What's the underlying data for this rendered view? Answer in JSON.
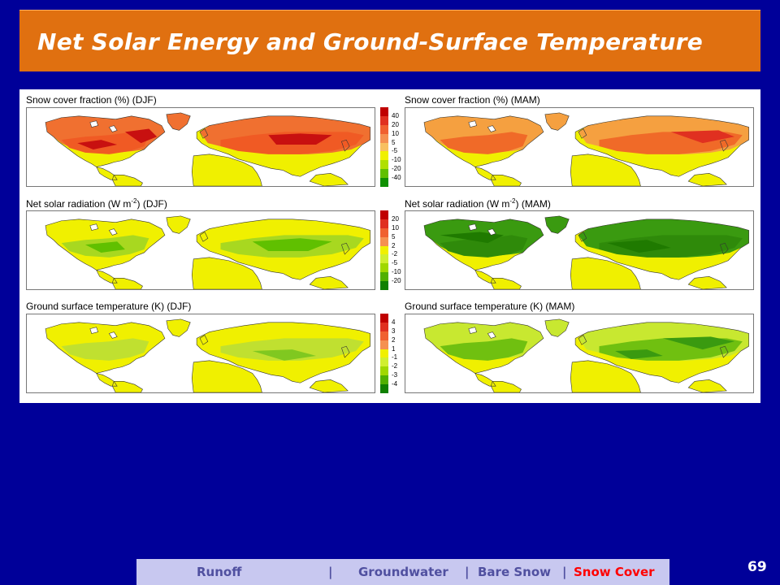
{
  "slide": {
    "title": "Net Solar Energy and Ground-Surface Temperature",
    "page_number": "69"
  },
  "colors": {
    "background": "#000099",
    "title_bar": "#e07010",
    "nav_bar": "#c8c8f0",
    "nav_text": "#5050a0",
    "nav_active": "#ff0000"
  },
  "figure": {
    "rows": [
      {
        "left_label": "Snow cover fraction (%) (DJF)",
        "right_label": "Snow cover fraction (%) (MAM)",
        "colorbar_ticks": [
          "40",
          "20",
          "10",
          "5",
          "-5",
          "-10",
          "-20",
          "-40"
        ],
        "colorbar_colors": [
          "#c00000",
          "#e03020",
          "#f06030",
          "#f59050",
          "#f8c060",
          "#f0f000",
          "#b0e000",
          "#60c000",
          "#109000"
        ]
      },
      {
        "left_label_main": "Net solar radiation (W m",
        "left_label_sup": "-2",
        "left_label_tail": ") (DJF)",
        "right_label_main": "Net solar radiation (W m",
        "right_label_sup": "-2",
        "right_label_tail": ") (MAM)",
        "colorbar_ticks": [
          "20",
          "10",
          "5",
          "2",
          "-2",
          "-5",
          "-10",
          "-20"
        ],
        "colorbar_colors": [
          "#c00000",
          "#e03020",
          "#f06030",
          "#f59050",
          "#f0f000",
          "#d0ef30",
          "#a0d800",
          "#50b000",
          "#108000"
        ]
      },
      {
        "left_label": "Ground surface temperature (K) (DJF)",
        "right_label": "Ground surface temperature (K) (MAM)",
        "colorbar_ticks": [
          "4",
          "3",
          "2",
          "1",
          "-1",
          "-2",
          "-3",
          "-4"
        ],
        "colorbar_colors": [
          "#c00000",
          "#e03020",
          "#f06030",
          "#f59050",
          "#f0f000",
          "#d0ef30",
          "#a0d800",
          "#50b000",
          "#108000"
        ]
      }
    ]
  },
  "nav": {
    "items": [
      "Runoff",
      "Groundwater",
      "Bare Snow",
      "Snow Cover"
    ],
    "separator": "|",
    "active": "Snow Cover"
  }
}
